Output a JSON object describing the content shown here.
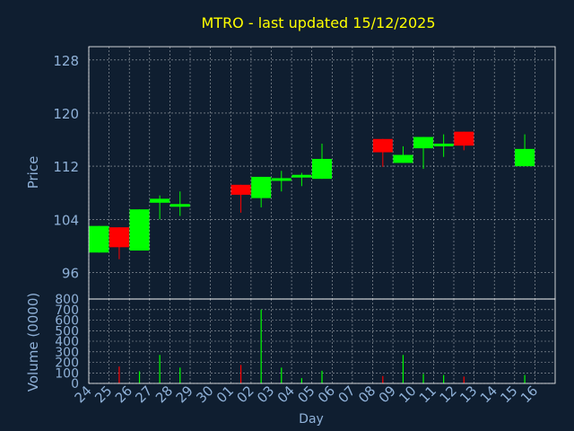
{
  "title": "MTRO - last updated 15/12/2025",
  "colors": {
    "background": "#0f1e30",
    "title": "#ffff00",
    "axis_text": "#8fb1d8",
    "frame": "#ffffff",
    "grid": "#ffffff",
    "up": "#00ff00",
    "down": "#ff0000"
  },
  "chart_data": [
    {
      "type": "candlestick",
      "ylabel": "Price",
      "ylim": [
        92,
        130
      ],
      "yticks": [
        96,
        104,
        112,
        120,
        128
      ],
      "grid": true,
      "categories": [
        "24",
        "25",
        "26",
        "27",
        "28",
        "29",
        "30",
        "01",
        "02",
        "03",
        "04",
        "05",
        "06",
        "07",
        "08",
        "09",
        "10",
        "11",
        "12",
        "13",
        "14",
        "15",
        "16"
      ],
      "ohlc": [
        {
          "x": "24",
          "open": 99.0,
          "high": 103.0,
          "low": 99.0,
          "close": 103.0
        },
        {
          "x": "25",
          "open": 102.8,
          "high": 102.8,
          "low": 98.0,
          "close": 99.8
        },
        {
          "x": "26",
          "open": 99.3,
          "high": 105.5,
          "low": 99.3,
          "close": 105.5
        },
        {
          "x": "27",
          "open": 106.5,
          "high": 107.6,
          "low": 104.0,
          "close": 107.1
        },
        {
          "x": "28",
          "open": 106.0,
          "high": 108.2,
          "low": 104.5,
          "close": 106.3
        },
        {
          "x": "01",
          "open": 109.2,
          "high": 109.2,
          "low": 105.0,
          "close": 107.7
        },
        {
          "x": "02",
          "open": 107.2,
          "high": 110.4,
          "low": 105.8,
          "close": 110.4
        },
        {
          "x": "03",
          "open": 110.0,
          "high": 111.3,
          "low": 108.2,
          "close": 110.2
        },
        {
          "x": "04",
          "open": 110.3,
          "high": 111.0,
          "low": 109.0,
          "close": 110.7
        },
        {
          "x": "05",
          "open": 110.1,
          "high": 115.4,
          "low": 110.1,
          "close": 113.1
        },
        {
          "x": "08",
          "open": 116.1,
          "high": 116.1,
          "low": 111.9,
          "close": 114.1
        },
        {
          "x": "09",
          "open": 112.5,
          "high": 115.0,
          "low": 112.5,
          "close": 113.7
        },
        {
          "x": "10",
          "open": 114.7,
          "high": 116.4,
          "low": 111.6,
          "close": 116.4
        },
        {
          "x": "11",
          "open": 115.1,
          "high": 116.8,
          "low": 113.4,
          "close": 115.4
        },
        {
          "x": "12",
          "open": 117.2,
          "high": 117.2,
          "low": 114.4,
          "close": 115.1
        },
        {
          "x": "15",
          "open": 112.0,
          "high": 116.8,
          "low": 112.0,
          "close": 114.6
        }
      ]
    },
    {
      "type": "bar",
      "xlabel": "Day",
      "ylabel": "Volume (0000)",
      "ylim": [
        0,
        800
      ],
      "yticks": [
        0,
        100,
        200,
        300,
        400,
        500,
        600,
        700,
        800
      ],
      "grid": true,
      "categories": [
        "24",
        "25",
        "26",
        "27",
        "28",
        "29",
        "30",
        "01",
        "02",
        "03",
        "04",
        "05",
        "06",
        "07",
        "08",
        "09",
        "10",
        "11",
        "12",
        "13",
        "14",
        "15",
        "16"
      ],
      "bars": [
        {
          "x": "24",
          "value": 0,
          "direction": "up"
        },
        {
          "x": "25",
          "value": 160,
          "direction": "down"
        },
        {
          "x": "26",
          "value": 115,
          "direction": "up"
        },
        {
          "x": "27",
          "value": 270,
          "direction": "up"
        },
        {
          "x": "28",
          "value": 150,
          "direction": "up"
        },
        {
          "x": "01",
          "value": 175,
          "direction": "down"
        },
        {
          "x": "02",
          "value": 700,
          "direction": "up"
        },
        {
          "x": "03",
          "value": 150,
          "direction": "up"
        },
        {
          "x": "04",
          "value": 50,
          "direction": "up"
        },
        {
          "x": "05",
          "value": 120,
          "direction": "up"
        },
        {
          "x": "08",
          "value": 70,
          "direction": "down"
        },
        {
          "x": "09",
          "value": 270,
          "direction": "up"
        },
        {
          "x": "10",
          "value": 90,
          "direction": "up"
        },
        {
          "x": "11",
          "value": 80,
          "direction": "up"
        },
        {
          "x": "12",
          "value": 65,
          "direction": "down"
        },
        {
          "x": "15",
          "value": 80,
          "direction": "up"
        }
      ]
    }
  ]
}
